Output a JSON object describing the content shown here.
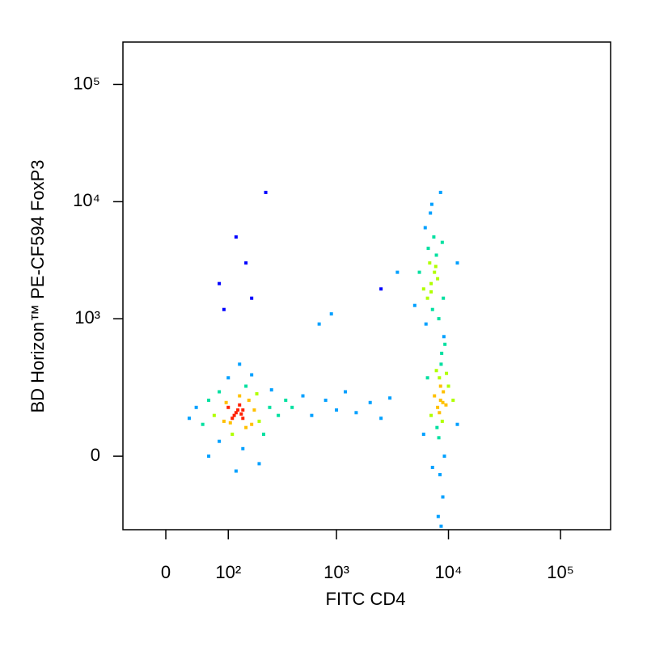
{
  "chart_data": {
    "type": "scatter",
    "xlabel": "FITC CD4",
    "ylabel": "BD Horizon™ PE-CF594 FoxP3",
    "xscale": "biexponential",
    "yscale": "biexponential",
    "xlim": [
      -60,
      280000
    ],
    "ylim": [
      -270,
      230000
    ],
    "xticks": [
      0,
      {
        "value": 100,
        "label": "10²"
      },
      {
        "value": 1000,
        "label": "10³"
      },
      {
        "value": 10000,
        "label": "10⁴"
      },
      {
        "value": 100000,
        "label": "10⁵"
      }
    ],
    "yticks": [
      0,
      {
        "value": 1000,
        "label": "10³"
      },
      {
        "value": 10000,
        "label": "10⁴"
      },
      {
        "value": 100000,
        "label": "10⁵"
      }
    ],
    "colors": [
      "#0000ff",
      "#00a0ff",
      "#00e0a0",
      "#b0ff00",
      "#ffc000",
      "#ff2000"
    ],
    "x": [
      120,
      100,
      140,
      160,
      90,
      130,
      180,
      70,
      200,
      110,
      150,
      60,
      250,
      80,
      170,
      130,
      115,
      140,
      95,
      190,
      220,
      50,
      40,
      300,
      140,
      100,
      170,
      30,
      260,
      120,
      80,
      200,
      130,
      350,
      60,
      150,
      105,
      125,
      135,
      110,
      90,
      120,
      230,
      150,
      80,
      170,
      400,
      500,
      600,
      800,
      1000,
      1200,
      1500,
      2000,
      2500,
      3000,
      700,
      900,
      2500,
      3500,
      8500,
      8000,
      9000,
      8300,
      8800,
      7500,
      9500,
      8200,
      8600,
      7800,
      9200,
      8400,
      8900,
      8100,
      7000,
      10000,
      11000,
      6500,
      8700,
      9300,
      7200,
      8500,
      8300,
      8900,
      9600,
      6000,
      12000,
      7900,
      8600,
      9100,
      7000,
      6500,
      7500,
      6800,
      7200,
      6000,
      8000,
      6600,
      7400,
      6900,
      8200,
      5500,
      7800,
      6200,
      9000,
      7100,
      8500,
      6300,
      7700,
      7000,
      5000,
      8800,
      12000
    ],
    "y": [
      130,
      150,
      110,
      180,
      100,
      200,
      140,
      120,
      100,
      60,
      250,
      180,
      150,
      40,
      90,
      160,
      120,
      140,
      170,
      210,
      60,
      90,
      150,
      120,
      20,
      300,
      320,
      110,
      230,
      -40,
      220,
      -20,
      400,
      180,
      0,
      80,
      95,
      140,
      125,
      110,
      1200,
      5000,
      12000,
      3000,
      2000,
      1500,
      150,
      200,
      120,
      180,
      140,
      220,
      130,
      170,
      110,
      190,
      900,
      1100,
      1800,
      2500,
      180,
      150,
      220,
      300,
      100,
      200,
      160,
      50,
      400,
      350,
      0,
      -50,
      -120,
      -200,
      120,
      250,
      180,
      300,
      500,
      600,
      -30,
      250,
      130,
      170,
      330,
      60,
      90,
      80,
      -250,
      700,
      2000,
      1500,
      2500,
      3000,
      1200,
      1800,
      2200,
      4000,
      5000,
      8000,
      1000,
      2500,
      3500,
      6000,
      1500,
      9500,
      12000,
      900,
      2800,
      1700,
      1300,
      4500,
      3000
    ]
  }
}
